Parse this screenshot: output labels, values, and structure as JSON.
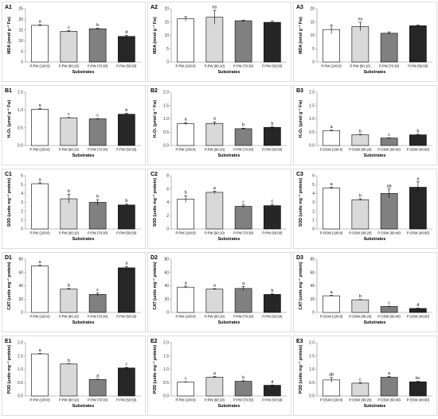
{
  "figure": {
    "x_axis_label": "Substrates",
    "colors": [
      "#ffffff",
      "#d9d9d9",
      "#808080",
      "#262626"
    ]
  },
  "chart_data": [
    {
      "id": "A1",
      "type": "bar",
      "ylabel": "MDA (nmol g⁻¹ Fw)",
      "ylim": [
        0,
        25
      ],
      "yticks": [
        "0",
        "5",
        "10",
        "15",
        "20",
        "25"
      ],
      "categories": [
        "P:PW (100:0)",
        "P:PW (90:10)",
        "P:PW (70:30)",
        "P:PW (50:50)"
      ],
      "values": [
        17.2,
        14.4,
        15.6,
        12.0
      ],
      "errors": [
        0.3,
        0.3,
        0.3,
        0.5
      ],
      "letters": [
        "a",
        "c",
        "b",
        "d"
      ]
    },
    {
      "id": "A2",
      "type": "bar",
      "ylabel": "MDA (nmol g⁻¹ Fw)",
      "ylim": [
        0,
        20
      ],
      "yticks": [
        "0",
        "5",
        "10",
        "15",
        "20"
      ],
      "categories": [
        "P:PW (100:0)",
        "P:PW (90:10)",
        "P:PW (70:30)",
        "P:PW (50:50)"
      ],
      "values": [
        16.2,
        16.8,
        15.5,
        14.9
      ],
      "errors": [
        0.8,
        2.6,
        0.2,
        0.4
      ],
      "letters": [
        "",
        "ns",
        "",
        ""
      ]
    },
    {
      "id": "A3",
      "type": "bar",
      "ylabel": "MDA (nmol g⁻¹ Fw)",
      "ylim": [
        0,
        20
      ],
      "yticks": [
        "0",
        "5",
        "10",
        "15",
        "20"
      ],
      "categories": [
        "P:PW (100:0)",
        "P:PW (90:10)",
        "P:PW (70:30)",
        "P:PW (50:50)"
      ],
      "values": [
        12.2,
        13.3,
        10.8,
        13.6
      ],
      "errors": [
        1.6,
        1.6,
        0.5,
        0.3
      ],
      "letters": [
        "",
        "ns",
        "",
        ""
      ]
    },
    {
      "id": "B1",
      "type": "bar",
      "ylabel": "H₂O₂ (µmol g⁻¹ Fw)",
      "ylim": [
        0,
        1.5
      ],
      "yticks": [
        "0.0",
        "0.5",
        "1.0",
        "1.5"
      ],
      "categories": [
        "P:PW (100:0)",
        "P:PW (90:10)",
        "P:PW (70:30)",
        "P:PW (50:50)"
      ],
      "values": [
        1.02,
        0.78,
        0.75,
        0.88
      ],
      "errors": [
        0.02,
        0.01,
        0.01,
        0.03
      ],
      "letters": [
        "a",
        "c",
        "c",
        "b"
      ]
    },
    {
      "id": "B2",
      "type": "bar",
      "ylabel": "H₂O₂ (µmol g⁻¹ Fw)",
      "ylim": [
        0,
        2.0
      ],
      "yticks": [
        "0.0",
        "0.5",
        "1.0",
        "1.5",
        "2.0"
      ],
      "categories": [
        "P:PW (100:0)",
        "P:PW (90:10)",
        "P:PW (70:30)",
        "P:PW (50:50)"
      ],
      "values": [
        0.82,
        0.83,
        0.63,
        0.68
      ],
      "errors": [
        0.04,
        0.06,
        0.02,
        0.02
      ],
      "letters": [
        "a",
        "a",
        "b",
        "b"
      ]
    },
    {
      "id": "B3",
      "type": "bar",
      "ylabel": "H₂O₂ (µmol g⁻¹ Fw)",
      "ylim": [
        0,
        2.0
      ],
      "yticks": [
        "0.0",
        "0.5",
        "1.0",
        "1.5",
        "2.0"
      ],
      "categories": [
        "P:OSW (100:0)",
        "P:OSW (80:20)",
        "P:OSW (60:40)",
        "P:OSW (40:60)"
      ],
      "values": [
        0.56,
        0.4,
        0.28,
        0.4
      ],
      "errors": [
        0.02,
        0.02,
        0.01,
        0.02
      ],
      "letters": [
        "a",
        "b",
        "c",
        "b"
      ]
    },
    {
      "id": "C1",
      "type": "bar",
      "ylabel": "SOD (units mg⁻¹ protein)",
      "ylim": [
        0,
        6
      ],
      "yticks": [
        "0",
        "1",
        "2",
        "3",
        "4",
        "5",
        "6"
      ],
      "categories": [
        "P:PW (100:0)",
        "P:PW (90:10)",
        "P:PW (70:30)",
        "P:PW (50:50)"
      ],
      "values": [
        5.1,
        3.4,
        3.0,
        2.7
      ],
      "errors": [
        0.1,
        0.5,
        0.3,
        0.1
      ],
      "letters": [
        "a",
        "b",
        "b",
        "b"
      ]
    },
    {
      "id": "C2",
      "type": "bar",
      "ylabel": "SOD (units mg⁻¹ protein)",
      "ylim": [
        0,
        8
      ],
      "yticks": [
        "0",
        "2",
        "4",
        "6",
        "8"
      ],
      "categories": [
        "P:PW (100:0)",
        "P:PW (90:10)",
        "P:PW (70:30)",
        "P:PW (50:50)"
      ],
      "values": [
        4.5,
        5.5,
        3.4,
        3.5
      ],
      "errors": [
        0.5,
        0.2,
        0.2,
        0.2
      ],
      "letters": [
        "b",
        "a",
        "c",
        "c"
      ]
    },
    {
      "id": "C3",
      "type": "bar",
      "ylabel": "SOD (units mg⁻¹ protein)",
      "ylim": [
        0,
        6
      ],
      "yticks": [
        "0",
        "1",
        "2",
        "3",
        "4",
        "5",
        "6"
      ],
      "categories": [
        "P:OSW (100:0)",
        "P:OSW (80:20)",
        "P:OSW (60:40)",
        "P:OSW (40:60)"
      ],
      "values": [
        4.6,
        3.3,
        4.0,
        4.7
      ],
      "errors": [
        0.1,
        0.1,
        0.5,
        0.6
      ],
      "letters": [
        "a",
        "b",
        "ab",
        "a"
      ]
    },
    {
      "id": "D1",
      "type": "bar",
      "ylabel": "CAT (units mg⁻¹ protein)",
      "ylim": [
        0,
        80
      ],
      "yticks": [
        "0",
        "20",
        "40",
        "60",
        "80"
      ],
      "categories": [
        "P:PW (100:0)",
        "P:PW (90:10)",
        "P:PW (70:30)",
        "P:PW (50:50)"
      ],
      "values": [
        70,
        35,
        27,
        67
      ],
      "errors": [
        1.0,
        1.0,
        2.5,
        2.0
      ],
      "letters": [
        "a",
        "b",
        "c",
        "a"
      ]
    },
    {
      "id": "D2",
      "type": "bar",
      "ylabel": "CAT (units mg⁻¹ protein)",
      "ylim": [
        0,
        80
      ],
      "yticks": [
        "0",
        "20",
        "40",
        "60",
        "80"
      ],
      "categories": [
        "P:PW (100:0)",
        "P:PW (90:10)",
        "P:PW (70:30)",
        "P:PW (50:50)"
      ],
      "values": [
        38,
        35,
        36,
        27
      ],
      "errors": [
        1.5,
        0.8,
        3.0,
        0.8
      ],
      "letters": [
        "a",
        "a",
        "a",
        "b"
      ]
    },
    {
      "id": "D3",
      "type": "bar",
      "ylabel": "CAT (units mg⁻¹ protein)",
      "ylim": [
        0,
        80
      ],
      "yticks": [
        "0",
        "20",
        "40",
        "60",
        "80"
      ],
      "categories": [
        "P:OSW (100:0)",
        "P:OSW (80:20)",
        "P:OSW (60:40)",
        "P:OSW (40:60)"
      ],
      "values": [
        25,
        19,
        9,
        6
      ],
      "errors": [
        0.8,
        0.5,
        0.4,
        0.5
      ],
      "letters": [
        "a",
        "b",
        "c",
        "d"
      ]
    },
    {
      "id": "E1",
      "type": "bar",
      "ylabel": "POD (units mg⁻¹ protein)",
      "ylim": [
        0,
        2.0
      ],
      "yticks": [
        "0.0",
        "0.5",
        "1.0",
        "1.5",
        "2.0"
      ],
      "categories": [
        "P:PW (100:0)",
        "P:PW (90:10)",
        "P:PW (70:30)",
        "P:PW (50:50)"
      ],
      "values": [
        1.58,
        1.2,
        0.62,
        1.05
      ],
      "errors": [
        0.02,
        0.01,
        0.01,
        0.02
      ],
      "letters": [
        "a",
        "b",
        "d",
        "c"
      ]
    },
    {
      "id": "E2",
      "type": "bar",
      "ylabel": "POD (units mg⁻¹ protein)",
      "ylim": [
        0,
        2.0
      ],
      "yticks": [
        "0.0",
        "0.5",
        "1.0",
        "1.5",
        "2.0"
      ],
      "categories": [
        "P:PW (100:0)",
        "P:PW (90:10)",
        "P:PW (70:30)",
        "P:PW (50:50)"
      ],
      "values": [
        0.52,
        0.7,
        0.55,
        0.4
      ],
      "errors": [
        0.01,
        0.03,
        0.02,
        0.01
      ],
      "letters": [
        "c",
        "a",
        "b",
        "d"
      ]
    },
    {
      "id": "E3",
      "type": "bar",
      "ylabel": "POD (units mg⁻¹ protein)",
      "ylim": [
        0,
        2.0
      ],
      "yticks": [
        "0.0",
        "0.5",
        "1.0",
        "1.5",
        "2.0"
      ],
      "categories": [
        "P:OSW (100:0)",
        "P:OSW (80:20)",
        "P:OSW (60:40)",
        "P:OSW (40:60)"
      ],
      "values": [
        0.6,
        0.48,
        0.7,
        0.53
      ],
      "errors": [
        0.09,
        0.02,
        0.03,
        0.02
      ],
      "letters": [
        "ab",
        "c",
        "a",
        "bc"
      ]
    }
  ]
}
